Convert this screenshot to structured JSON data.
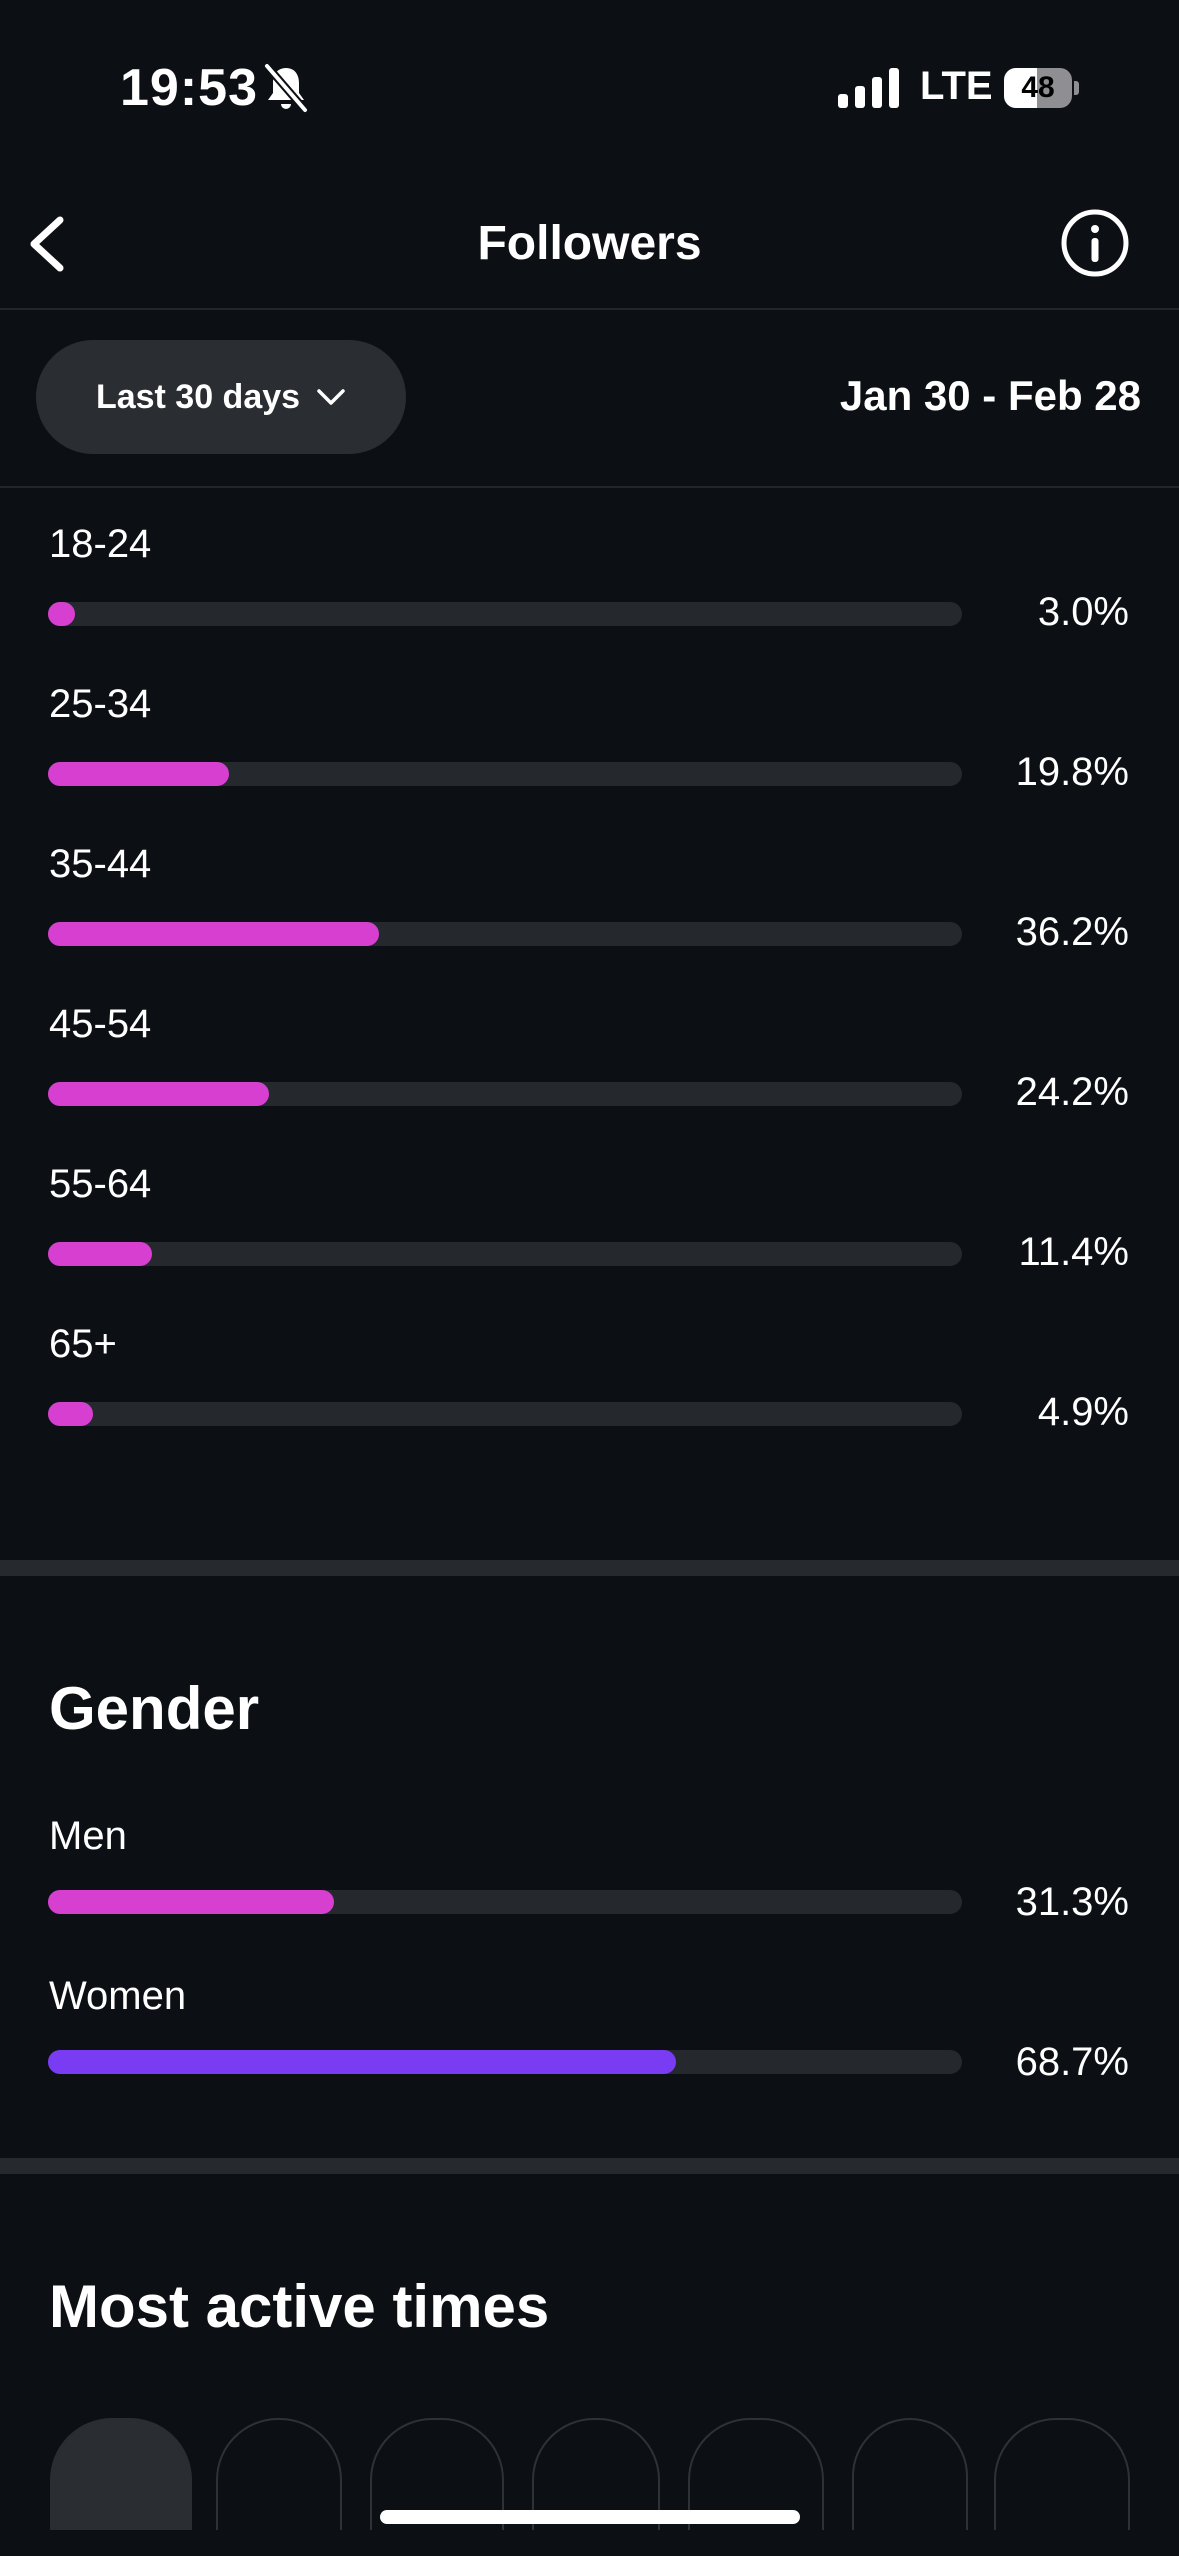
{
  "status_bar": {
    "time": "19:53",
    "network": "LTE",
    "battery": "48"
  },
  "header": {
    "title": "Followers"
  },
  "filter": {
    "period": "Last 30 days",
    "date_range": "Jan 30 - Feb 28"
  },
  "colors": {
    "accent": "#d63fd0",
    "women": "#7a3cf2",
    "track": "#25282d",
    "background": "#0c1014"
  },
  "age": [
    {
      "label": "18-24",
      "percent_text": "3.0%",
      "value": 3.0
    },
    {
      "label": "25-34",
      "percent_text": "19.8%",
      "value": 19.8
    },
    {
      "label": "35-44",
      "percent_text": "36.2%",
      "value": 36.2
    },
    {
      "label": "45-54",
      "percent_text": "24.2%",
      "value": 24.2
    },
    {
      "label": "55-64",
      "percent_text": "11.4%",
      "value": 11.4
    },
    {
      "label": "65+",
      "percent_text": "4.9%",
      "value": 4.9
    }
  ],
  "gender": {
    "title": "Gender",
    "items": [
      {
        "label": "Men",
        "percent_text": "31.3%",
        "value": 31.3,
        "color": "#d63fd0"
      },
      {
        "label": "Women",
        "percent_text": "68.7%",
        "value": 68.7,
        "color": "#7a3cf2"
      }
    ]
  },
  "most_active": {
    "title": "Most active times"
  }
}
